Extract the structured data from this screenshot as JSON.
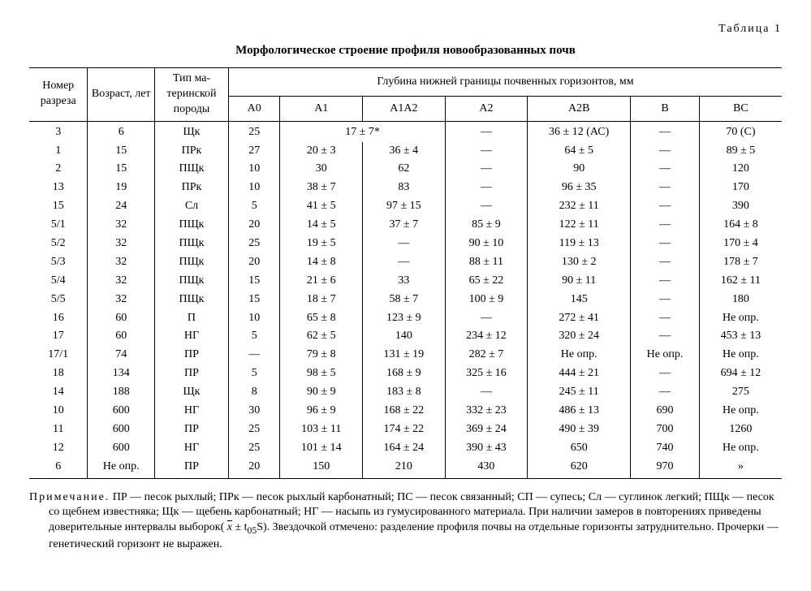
{
  "table_label": "Таблица 1",
  "caption": "Морфологическое строение профиля новообразованных почв",
  "head": {
    "col0": "Номер разреза",
    "col1": "Возраст, лет",
    "col2": "Тип ма- теринской породы",
    "group": "Глубина нижней границы почвенных горизонтов, мм",
    "sub": {
      "a0": "А0",
      "a1": "А1",
      "a1a2": "А1А2",
      "a2": "А2",
      "a2b": "А2В",
      "b": "В",
      "bc": "ВС"
    }
  },
  "rows": [
    {
      "n": "3",
      "age": "6",
      "rock": "Щк",
      "a0": "25",
      "a1span": "17 ± 7*",
      "a2": "—",
      "a2b": "36 ± 12 (АС)",
      "b": "—",
      "bc": "70 (С)"
    },
    {
      "n": "1",
      "age": "15",
      "rock": "ПРк",
      "a0": "27",
      "a1": "20 ± 3",
      "a1a2": "36 ± 4",
      "a2": "—",
      "a2b": "64 ± 5",
      "b": "—",
      "bc": "89 ± 5"
    },
    {
      "n": "2",
      "age": "15",
      "rock": "ПЩк",
      "a0": "10",
      "a1": "30",
      "a1a2": "62",
      "a2": "—",
      "a2b": "90",
      "b": "—",
      "bc": "120"
    },
    {
      "n": "13",
      "age": "19",
      "rock": "ПРк",
      "a0": "10",
      "a1": "38 ± 7",
      "a1a2": "83",
      "a2": "—",
      "a2b": "96 ± 35",
      "b": "—",
      "bc": "170"
    },
    {
      "n": "15",
      "age": "24",
      "rock": "Сл",
      "a0": "5",
      "a1": "41 ± 5",
      "a1a2": "97 ± 15",
      "a2": "—",
      "a2b": "232 ± 11",
      "b": "—",
      "bc": "390"
    },
    {
      "n": "5/1",
      "age": "32",
      "rock": "ПЩк",
      "a0": "20",
      "a1": "14 ± 5",
      "a1a2": "37 ± 7",
      "a2": "85 ± 9",
      "a2b": "122 ± 11",
      "b": "—",
      "bc": "164 ± 8"
    },
    {
      "n": "5/2",
      "age": "32",
      "rock": "ПЩк",
      "a0": "25",
      "a1": "19 ± 5",
      "a1a2": "—",
      "a2": "90 ± 10",
      "a2b": "119 ± 13",
      "b": "—",
      "bc": "170 ± 4"
    },
    {
      "n": "5/3",
      "age": "32",
      "rock": "ПЩк",
      "a0": "20",
      "a1": "14 ± 8",
      "a1a2": "—",
      "a2": "88 ± 11",
      "a2b": "130 ± 2",
      "b": "—",
      "bc": "178 ± 7"
    },
    {
      "n": "5/4",
      "age": "32",
      "rock": "ПЩк",
      "a0": "15",
      "a1": "21 ± 6",
      "a1a2": "33",
      "a2": "65 ± 22",
      "a2b": "90 ± 11",
      "b": "—",
      "bc": "162 ± 11"
    },
    {
      "n": "5/5",
      "age": "32",
      "rock": "ПЩк",
      "a0": "15",
      "a1": "18 ± 7",
      "a1a2": "58 ± 7",
      "a2": "100 ± 9",
      "a2b": "145",
      "b": "—",
      "bc": "180"
    },
    {
      "n": "16",
      "age": "60",
      "rock": "П",
      "a0": "10",
      "a1": "65 ± 8",
      "a1a2": "123 ± 9",
      "a2": "—",
      "a2b": "272 ± 41",
      "b": "—",
      "bc": "Не опр."
    },
    {
      "n": "17",
      "age": "60",
      "rock": "НГ",
      "a0": "5",
      "a1": "62 ± 5",
      "a1a2": "140",
      "a2": "234 ± 12",
      "a2b": "320 ± 24",
      "b": "—",
      "bc": "453 ± 13"
    },
    {
      "n": "17/1",
      "age": "74",
      "rock": "ПР",
      "a0": "—",
      "a1": "79 ± 8",
      "a1a2": "131 ± 19",
      "a2": "282 ± 7",
      "a2b": "Не опр.",
      "b": "Не опр.",
      "bc": "Не опр."
    },
    {
      "n": "18",
      "age": "134",
      "rock": "ПР",
      "a0": "5",
      "a1": "98 ± 5",
      "a1a2": "168 ± 9",
      "a2": "325 ± 16",
      "a2b": "444 ± 21",
      "b": "—",
      "bc": "694 ± 12"
    },
    {
      "n": "14",
      "age": "188",
      "rock": "Щк",
      "a0": "8",
      "a1": "90 ± 9",
      "a1a2": "183 ± 8",
      "a2": "—",
      "a2b": "245 ± 11",
      "b": "—",
      "bc": "275"
    },
    {
      "n": "10",
      "age": "600",
      "rock": "НГ",
      "a0": "30",
      "a1": "96 ± 9",
      "a1a2": "168 ± 22",
      "a2": "332 ± 23",
      "a2b": "486 ± 13",
      "b": "690",
      "bc": "Не опр."
    },
    {
      "n": "11",
      "age": "600",
      "rock": "ПР",
      "a0": "25",
      "a1": "103 ± 11",
      "a1a2": "174 ± 22",
      "a2": "369 ± 24",
      "a2b": "490 ± 39",
      "b": "700",
      "bc": "1260"
    },
    {
      "n": "12",
      "age": "600",
      "rock": "НГ",
      "a0": "25",
      "a1": "101 ± 14",
      "a1a2": "164 ± 24",
      "a2": "390 ± 43",
      "a2b": "650",
      "b": "740",
      "bc": "Не опр."
    },
    {
      "n": "6",
      "age": "Не опр.",
      "rock": "ПР",
      "a0": "20",
      "a1": "150",
      "a1a2": "210",
      "a2": "430",
      "a2b": "620",
      "b": "970",
      "bc": "»"
    }
  ],
  "note": {
    "label": "Примечание.",
    "body_before_formula": "ПР — песок рыхлый; ПРк — песок рыхлый карбонатный; ПС — песок связанный; СП — супесь; Сл — суглинок легкий; ПЩк — песок со щебнем известняка; Щк — щебень карбонатный; НГ — насыпь из гумусированного материала. При наличии замеров в повторениях приведены доверительные интервалы выборок( ",
    "formula_x": "x",
    "formula_rest": " ± t",
    "formula_sub": "05",
    "formula_tail": "S).",
    "body_after_formula": " Звездочкой отмечено: разделение профиля почвы на отдельные горизонты затруднительно. Прочерки — генетический горизонт не выражен."
  }
}
